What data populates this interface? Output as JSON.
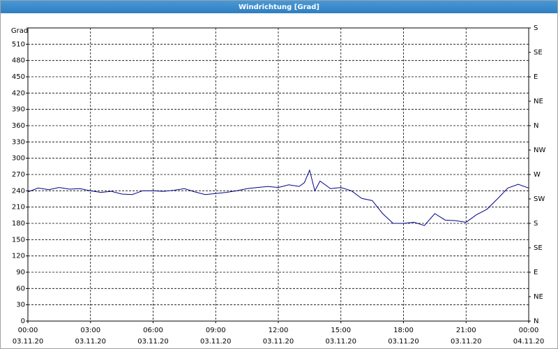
{
  "chart_data": {
    "type": "line",
    "title": "Windrichtung [Grad]",
    "y_label": "Grad",
    "x": [
      0,
      0.5,
      1,
      1.5,
      2,
      2.5,
      3,
      3.5,
      4,
      4.5,
      5,
      5.5,
      6,
      6.5,
      7,
      7.5,
      8,
      8.5,
      9,
      9.5,
      10,
      10.5,
      11,
      11.5,
      12,
      12.5,
      13,
      13.25,
      13.5,
      13.75,
      14,
      14.5,
      15,
      15.5,
      16,
      16.5,
      17,
      17.5,
      18,
      18.5,
      19,
      19.5,
      20,
      20.5,
      21,
      21.5,
      22,
      22.5,
      23,
      23.5,
      24
    ],
    "series": [
      {
        "color": "#00008b",
        "values": [
          238,
          245,
          242,
          246,
          243,
          244,
          240,
          237,
          239,
          234,
          233,
          240,
          240,
          239,
          241,
          244,
          238,
          233,
          235,
          237,
          240,
          244,
          246,
          248,
          246,
          251,
          248,
          255,
          278,
          240,
          258,
          244,
          246,
          240,
          226,
          222,
          198,
          180,
          180,
          182,
          176,
          198,
          186,
          185,
          182,
          196,
          206,
          225,
          245,
          252,
          245
        ]
      }
    ],
    "xlim": [
      0,
      24
    ],
    "xticks": [
      {
        "value": 0,
        "label": "00:00"
      },
      {
        "value": 3,
        "label": "03:00"
      },
      {
        "value": 6,
        "label": "06:00"
      },
      {
        "value": 9,
        "label": "09:00"
      },
      {
        "value": 12,
        "label": "12:00"
      },
      {
        "value": 15,
        "label": "15:00"
      },
      {
        "value": 18,
        "label": "18:00"
      },
      {
        "value": 21,
        "label": "21:00"
      },
      {
        "value": 24,
        "label": "00:00"
      }
    ],
    "xtick_dates": [
      "03.11.20",
      "03.11.20",
      "03.11.20",
      "03.11.20",
      "03.11.20",
      "03.11.20",
      "03.11.20",
      "03.11.20",
      "04.11.20"
    ],
    "ylim": [
      0,
      540
    ],
    "yticks": [
      0,
      30,
      60,
      90,
      120,
      150,
      180,
      210,
      240,
      270,
      300,
      330,
      360,
      390,
      420,
      450,
      480,
      510
    ],
    "y2lim": [
      0,
      540
    ],
    "y2ticks": [
      {
        "value": 0,
        "label": "N"
      },
      {
        "value": 45,
        "label": "NE"
      },
      {
        "value": 90,
        "label": "E"
      },
      {
        "value": 135,
        "label": "SE"
      },
      {
        "value": 180,
        "label": "S"
      },
      {
        "value": 225,
        "label": "SW"
      },
      {
        "value": 270,
        "label": "W"
      },
      {
        "value": 315,
        "label": "NW"
      },
      {
        "value": 360,
        "label": "N"
      },
      {
        "value": 405,
        "label": "NE"
      },
      {
        "value": 450,
        "label": "E"
      },
      {
        "value": 495,
        "label": "SE"
      },
      {
        "value": 540,
        "label": "S"
      }
    ],
    "grid": true
  }
}
